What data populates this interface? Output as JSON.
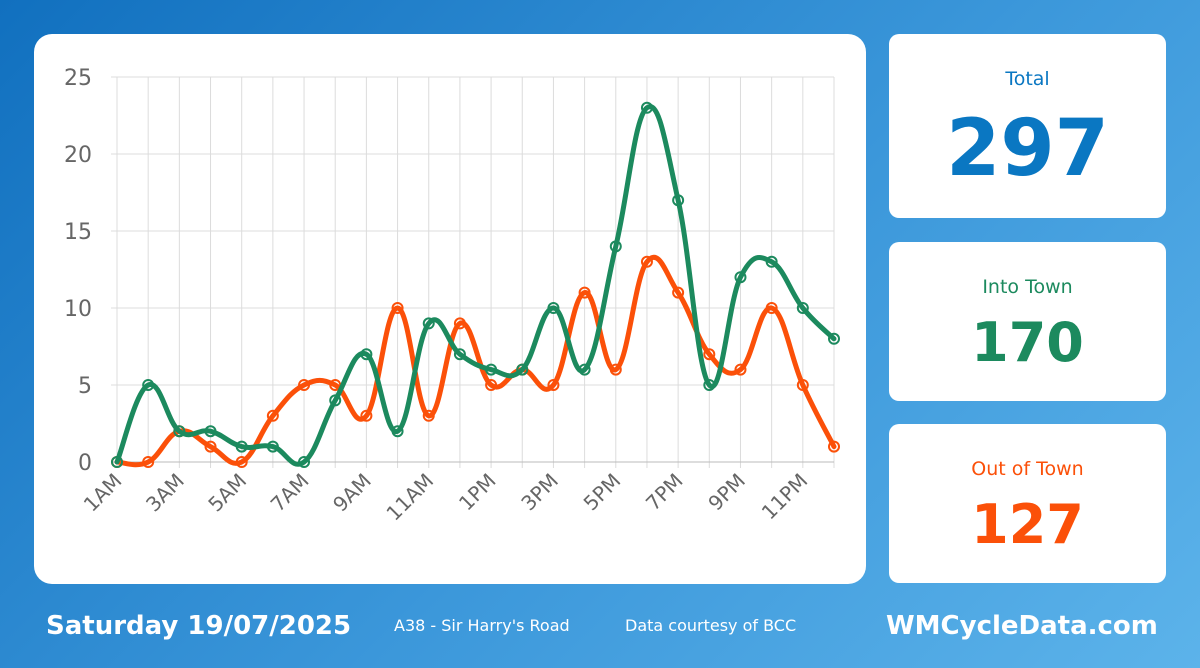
{
  "summary": {
    "total": {
      "label": "Total",
      "value": "297",
      "color": "#0a77c2"
    },
    "into_town": {
      "label": "Into Town",
      "value": "170",
      "color": "#1c8a5e"
    },
    "out_of_town": {
      "label": "Out of Town",
      "value": "127",
      "color": "#fb5009"
    }
  },
  "footer": {
    "date": "Saturday 19/07/2025",
    "location": "A38 - Sir Harry's Road",
    "credit": "Data courtesy of BCC",
    "site": "WMCycleData.com"
  },
  "chart_data": {
    "type": "line",
    "x": [
      "1AM",
      "2AM",
      "3AM",
      "4AM",
      "5AM",
      "6AM",
      "7AM",
      "8AM",
      "9AM",
      "10AM",
      "11AM",
      "12PM",
      "1PM",
      "2PM",
      "3PM",
      "4PM",
      "5PM",
      "6PM",
      "7PM",
      "8PM",
      "9PM",
      "10PM",
      "11PM",
      "12AM"
    ],
    "x_tick_labels": [
      "1AM",
      "3AM",
      "5AM",
      "7AM",
      "9AM",
      "11AM",
      "1PM",
      "3PM",
      "5PM",
      "7PM",
      "9PM",
      "11PM"
    ],
    "y_ticks": [
      "0",
      "5",
      "10",
      "15",
      "20",
      "25"
    ],
    "ylim": [
      0,
      25
    ],
    "grid": true,
    "series": [
      {
        "color": "#fb5009",
        "values": [
          0,
          0,
          2,
          1,
          0,
          3,
          5,
          5,
          3,
          10,
          3,
          9,
          5,
          6,
          5,
          11,
          6,
          13,
          11,
          7,
          6,
          10,
          5,
          1
        ]
      },
      {
        "color": "#1c8a5e",
        "values": [
          0,
          5,
          2,
          2,
          1,
          1,
          0,
          4,
          7,
          2,
          9,
          7,
          6,
          6,
          10,
          6,
          14,
          23,
          17,
          5,
          12,
          13,
          10,
          8
        ]
      }
    ]
  }
}
